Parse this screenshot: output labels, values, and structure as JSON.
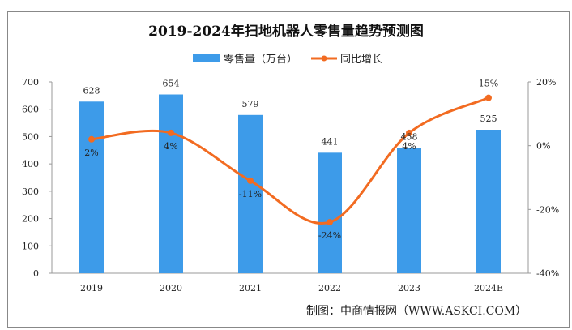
{
  "chart_data": {
    "type": "bar+line",
    "title": "2019-2024年扫地机器人零售量趋势预测图",
    "categories": [
      "2019",
      "2020",
      "2021",
      "2022",
      "2023",
      "2024E"
    ],
    "series": [
      {
        "name": "零售量（万台）",
        "type": "bar",
        "axis": "left",
        "color": "#3d9be9",
        "values": [
          628,
          654,
          579,
          441,
          458,
          525
        ],
        "labels": [
          "628",
          "654",
          "579",
          "441",
          "458",
          "525"
        ]
      },
      {
        "name": "同比增长",
        "type": "line",
        "axis": "right",
        "color": "#f26b21",
        "smooth": true,
        "values": [
          2,
          4,
          -11,
          -24,
          4,
          15
        ],
        "labels": [
          "2%",
          "4%",
          "-11%",
          "-24%",
          "4%",
          "15%"
        ]
      }
    ],
    "left_axis": {
      "ylim": [
        0,
        700
      ],
      "ticks": [
        "0",
        "100",
        "200",
        "300",
        "400",
        "500",
        "600",
        "700"
      ]
    },
    "right_axis": {
      "ylim": [
        -40,
        20
      ],
      "ticks": [
        "-40%",
        "-20%",
        "0%",
        "20%"
      ]
    },
    "legend": "top-center",
    "grid": false,
    "source": "制图：中商情报网（WWW.ASKCI.COM）"
  }
}
